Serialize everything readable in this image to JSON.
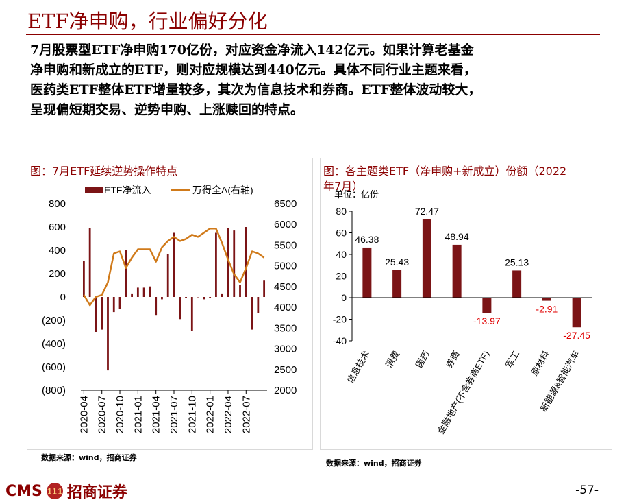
{
  "page": {
    "title": "ETF净申购，行业偏好分化",
    "paragraph_lines": [
      "7月股票型ETF净申购170亿份，对应资金净流入142亿元。如果计算老基金",
      "净申购和新成立的ETF，则对应规模达到440亿元。具体不同行业主题来看，",
      "医药类ETF整体ETF增量较多，其次为信息技术和券商。ETF整体波动较大，",
      "呈现偏短期交易、逆势申购、上涨赎回的特点。"
    ],
    "page_number": "-57-"
  },
  "footer": {
    "brand_en": "CMS",
    "brand_badge": "111",
    "brand_cn": "招商证券"
  },
  "left_panel": {
    "title": "图：7月ETF延续逆势操作特点",
    "source": "数据来源：wind，招商证券"
  },
  "right_panel": {
    "title_line1": "图：各主题类ETF（净申购+新成立）份额（2022",
    "title_line2": "年7月）",
    "source": "数据来源：wind，招商证券"
  },
  "colors": {
    "bar": "#7b1416",
    "line": "#d07a1a",
    "accent": "#8b0000",
    "label_negative": "#e00000"
  },
  "chart_data": [
    {
      "type": "bar+line",
      "title": "图：7月ETF延续逆势操作特点",
      "legend": [
        {
          "name": "ETF净流入",
          "kind": "bar"
        },
        {
          "name": "万得全A(右轴)",
          "kind": "line"
        }
      ],
      "y_left": {
        "ylim": [
          -800,
          800
        ],
        "ticks": [
          800,
          600,
          400,
          200,
          0,
          -200,
          -400,
          -600,
          -800
        ],
        "tick_labels": [
          "800",
          "600",
          "400",
          "200",
          "0",
          "(200)",
          "(400)",
          "(600)",
          "(800)"
        ]
      },
      "y_right": {
        "ylim": [
          2000,
          6500
        ],
        "ticks": [
          6500,
          6000,
          5500,
          5000,
          4500,
          4000,
          3500,
          3000,
          2500,
          2000
        ],
        "tick_labels": [
          "6500",
          "6000",
          "5500",
          "5000",
          "4500",
          "4000",
          "3500",
          "3000",
          "2500",
          "2000"
        ]
      },
      "x_labels": [
        "2020-04",
        "2020-07",
        "2020-10",
        "2021-01",
        "2021-04",
        "2021-07",
        "2021-10",
        "2022-01",
        "2022-04",
        "2022-07"
      ],
      "series": [
        {
          "name": "ETF净流入",
          "values": [
            310,
            590,
            -300,
            -280,
            -630,
            -130,
            -100,
            400,
            30,
            80,
            80,
            90,
            -160,
            -20,
            370,
            550,
            -190,
            -10,
            -290,
            0,
            -20,
            -10,
            550,
            30,
            590,
            570,
            100,
            600,
            -280,
            -140,
            140
          ]
        },
        {
          "name": "万得全A(右轴)",
          "values": [
            4300,
            4050,
            4250,
            4300,
            4600,
            5300,
            5350,
            4950,
            5200,
            5400,
            5400,
            5400,
            5100,
            5450,
            5600,
            5700,
            5600,
            5650,
            5750,
            5700,
            5800,
            5900,
            5900,
            5550,
            5150,
            4800,
            4600,
            4950,
            5350,
            5300,
            5200
          ]
        }
      ]
    },
    {
      "type": "bar",
      "title": "图：各主题类ETF（净申购+新成立）份额（2022年7月）",
      "unit": "单位：亿份",
      "categories": [
        "信息技术",
        "消费",
        "医药",
        "券商",
        "金融地产(不含券商ETF)",
        "军工",
        "原材料",
        "新能源&智能汽车"
      ],
      "values": [
        46.38,
        25.43,
        72.47,
        48.94,
        -13.97,
        25.13,
        -2.91,
        -27.45
      ],
      "value_labels": [
        "46.38",
        "25.43",
        "72.47",
        "48.94",
        "-13.97",
        "25.13",
        "-2.91",
        "-27.45"
      ],
      "ylim": [
        -40,
        80
      ],
      "ticks": [
        80,
        60,
        40,
        20,
        0,
        -20,
        -40
      ],
      "tick_labels": [
        "80",
        "60",
        "40",
        "20",
        "0",
        "-20",
        "-40"
      ]
    }
  ]
}
